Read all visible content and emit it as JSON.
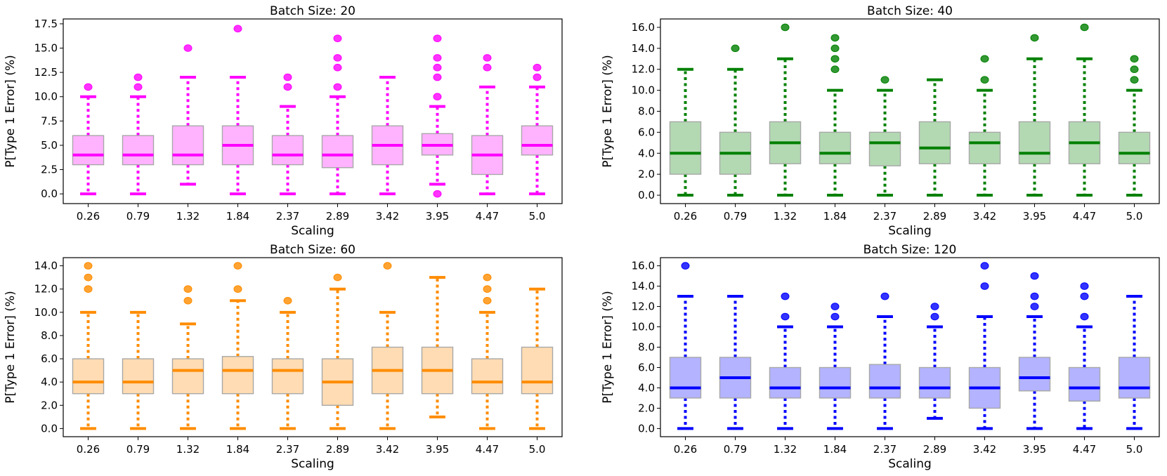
{
  "chart_data": [
    {
      "type": "box",
      "title": "Batch Size: 20",
      "xlabel": "Scaling",
      "ylabel": "P[Type 1 Error] (%)",
      "ylim": [
        -1,
        18
      ],
      "yticks": [
        "0.0",
        "2.5",
        "5.0",
        "7.5",
        "10.0",
        "12.5",
        "15.0",
        "17.5"
      ],
      "color": "#ff00ff",
      "fill": "#ffb3ff",
      "categories": [
        "0.26",
        "0.79",
        "1.32",
        "1.84",
        "2.37",
        "2.89",
        "3.42",
        "3.95",
        "4.47",
        "5.0"
      ],
      "boxes": [
        {
          "whislo": 0,
          "q1": 3,
          "med": 4,
          "q3": 6,
          "whishi": 10,
          "fliers": [
            11
          ]
        },
        {
          "whislo": 0,
          "q1": 3,
          "med": 4,
          "q3": 6,
          "whishi": 10,
          "fliers": [
            11,
            12
          ]
        },
        {
          "whislo": 1,
          "q1": 3,
          "med": 4,
          "q3": 7,
          "whishi": 12,
          "fliers": [
            15
          ]
        },
        {
          "whislo": 0,
          "q1": 3,
          "med": 5,
          "q3": 7,
          "whishi": 12,
          "fliers": [
            17
          ]
        },
        {
          "whislo": 0,
          "q1": 3,
          "med": 4,
          "q3": 6,
          "whishi": 9,
          "fliers": [
            11,
            12
          ]
        },
        {
          "whislo": 0,
          "q1": 2.7,
          "med": 4,
          "q3": 6,
          "whishi": 10,
          "fliers": [
            11,
            13,
            14,
            16
          ]
        },
        {
          "whislo": 0,
          "q1": 3,
          "med": 5,
          "q3": 7,
          "whishi": 12,
          "fliers": []
        },
        {
          "whislo": 1,
          "q1": 4,
          "med": 5,
          "q3": 6.2,
          "whishi": 9,
          "fliers": [
            0,
            10,
            12,
            13,
            14,
            16
          ]
        },
        {
          "whislo": 0,
          "q1": 2,
          "med": 4,
          "q3": 6,
          "whishi": 11,
          "fliers": [
            13,
            14
          ]
        },
        {
          "whislo": 0,
          "q1": 4,
          "med": 5,
          "q3": 7,
          "whishi": 11,
          "fliers": [
            12,
            13
          ]
        }
      ]
    },
    {
      "type": "box",
      "title": "Batch Size: 40",
      "xlabel": "Scaling",
      "ylabel": "P[Type 1 Error] (%)",
      "ylim": [
        -0.8,
        16.8
      ],
      "yticks": [
        "0.0",
        "2.0",
        "4.0",
        "6.0",
        "8.0",
        "10.0",
        "12.0",
        "14.0",
        "16.0"
      ],
      "color": "#008000",
      "fill": "#b3d9b3",
      "categories": [
        "0.26",
        "0.79",
        "1.32",
        "1.84",
        "2.37",
        "2.89",
        "3.42",
        "3.95",
        "4.47",
        "5.0"
      ],
      "boxes": [
        {
          "whislo": 0,
          "q1": 2,
          "med": 4,
          "q3": 7,
          "whishi": 12,
          "fliers": []
        },
        {
          "whislo": 0,
          "q1": 2,
          "med": 4,
          "q3": 6,
          "whishi": 12,
          "fliers": [
            14
          ]
        },
        {
          "whislo": 0,
          "q1": 3,
          "med": 5,
          "q3": 7,
          "whishi": 13,
          "fliers": [
            16
          ]
        },
        {
          "whislo": 0,
          "q1": 3,
          "med": 4,
          "q3": 6,
          "whishi": 10,
          "fliers": [
            12,
            13,
            14,
            15
          ]
        },
        {
          "whislo": 0,
          "q1": 2.8,
          "med": 5,
          "q3": 6,
          "whishi": 10,
          "fliers": [
            11
          ]
        },
        {
          "whislo": 0,
          "q1": 3,
          "med": 4.5,
          "q3": 7,
          "whishi": 11,
          "fliers": []
        },
        {
          "whislo": 0,
          "q1": 3,
          "med": 5,
          "q3": 6,
          "whishi": 10,
          "fliers": [
            11,
            13
          ]
        },
        {
          "whislo": 0,
          "q1": 3,
          "med": 4,
          "q3": 7,
          "whishi": 13,
          "fliers": [
            15
          ]
        },
        {
          "whislo": 0,
          "q1": 3,
          "med": 5,
          "q3": 7,
          "whishi": 13,
          "fliers": [
            16
          ]
        },
        {
          "whislo": 0,
          "q1": 3,
          "med": 4,
          "q3": 6,
          "whishi": 10,
          "fliers": [
            11,
            12,
            13
          ]
        }
      ]
    },
    {
      "type": "box",
      "title": "Batch Size: 60",
      "xlabel": "Scaling",
      "ylabel": "P[Type 1 Error] (%)",
      "ylim": [
        -0.7,
        14.7
      ],
      "yticks": [
        "0.0",
        "2.0",
        "4.0",
        "6.0",
        "8.0",
        "10.0",
        "12.0",
        "14.0"
      ],
      "color": "#ff8c00",
      "fill": "#ffdcb3",
      "categories": [
        "0.26",
        "0.79",
        "1.32",
        "1.84",
        "2.37",
        "2.89",
        "3.42",
        "3.95",
        "4.47",
        "5.0"
      ],
      "boxes": [
        {
          "whislo": 0,
          "q1": 3,
          "med": 4,
          "q3": 6,
          "whishi": 10,
          "fliers": [
            12,
            13,
            14
          ]
        },
        {
          "whislo": 0,
          "q1": 3,
          "med": 4,
          "q3": 6,
          "whishi": 10,
          "fliers": []
        },
        {
          "whislo": 0,
          "q1": 3,
          "med": 5,
          "q3": 6,
          "whishi": 9,
          "fliers": [
            11,
            12
          ]
        },
        {
          "whislo": 0,
          "q1": 3,
          "med": 5,
          "q3": 6.2,
          "whishi": 11,
          "fliers": [
            12,
            14
          ]
        },
        {
          "whislo": 0,
          "q1": 3,
          "med": 5,
          "q3": 6,
          "whishi": 10,
          "fliers": [
            11
          ]
        },
        {
          "whislo": 0,
          "q1": 2,
          "med": 4,
          "q3": 6,
          "whishi": 12,
          "fliers": [
            13
          ]
        },
        {
          "whislo": 0,
          "q1": 3,
          "med": 5,
          "q3": 7,
          "whishi": 10,
          "fliers": [
            14
          ]
        },
        {
          "whislo": 1,
          "q1": 3,
          "med": 5,
          "q3": 7,
          "whishi": 13,
          "fliers": []
        },
        {
          "whislo": 0,
          "q1": 3,
          "med": 4,
          "q3": 6,
          "whishi": 10,
          "fliers": [
            11,
            12,
            13
          ]
        },
        {
          "whislo": 0,
          "q1": 3,
          "med": 4,
          "q3": 7,
          "whishi": 12,
          "fliers": []
        }
      ]
    },
    {
      "type": "box",
      "title": "Batch Size: 120",
      "xlabel": "Scaling",
      "ylabel": "P[Type 1 Error] (%)",
      "ylim": [
        -0.8,
        16.8
      ],
      "yticks": [
        "0.0",
        "2.0",
        "4.0",
        "6.0",
        "8.0",
        "10.0",
        "12.0",
        "14.0",
        "16.0"
      ],
      "color": "#0000ff",
      "fill": "#b3b3ff",
      "categories": [
        "0.26",
        "0.79",
        "1.32",
        "1.84",
        "2.37",
        "2.89",
        "3.42",
        "3.95",
        "4.47",
        "5.0"
      ],
      "boxes": [
        {
          "whislo": 0,
          "q1": 3,
          "med": 4,
          "q3": 7,
          "whishi": 13,
          "fliers": [
            16
          ]
        },
        {
          "whislo": 0,
          "q1": 3,
          "med": 5,
          "q3": 7,
          "whishi": 13,
          "fliers": []
        },
        {
          "whislo": 0,
          "q1": 3,
          "med": 4,
          "q3": 6,
          "whishi": 10,
          "fliers": [
            11,
            13
          ]
        },
        {
          "whislo": 0,
          "q1": 3,
          "med": 4,
          "q3": 6,
          "whishi": 10,
          "fliers": [
            11,
            12
          ]
        },
        {
          "whislo": 0,
          "q1": 3,
          "med": 4,
          "q3": 6.3,
          "whishi": 11,
          "fliers": [
            13
          ]
        },
        {
          "whislo": 1,
          "q1": 3,
          "med": 4,
          "q3": 6,
          "whishi": 10,
          "fliers": [
            11,
            12
          ]
        },
        {
          "whislo": 0,
          "q1": 2,
          "med": 4,
          "q3": 6,
          "whishi": 11,
          "fliers": [
            14,
            16
          ]
        },
        {
          "whislo": 0,
          "q1": 3.7,
          "med": 5,
          "q3": 7,
          "whishi": 11,
          "fliers": [
            12,
            13,
            15
          ]
        },
        {
          "whislo": 0,
          "q1": 2.7,
          "med": 4,
          "q3": 6,
          "whishi": 10,
          "fliers": [
            11,
            13,
            14
          ]
        },
        {
          "whislo": 0,
          "q1": 3,
          "med": 4,
          "q3": 7,
          "whishi": 13,
          "fliers": []
        }
      ]
    }
  ]
}
